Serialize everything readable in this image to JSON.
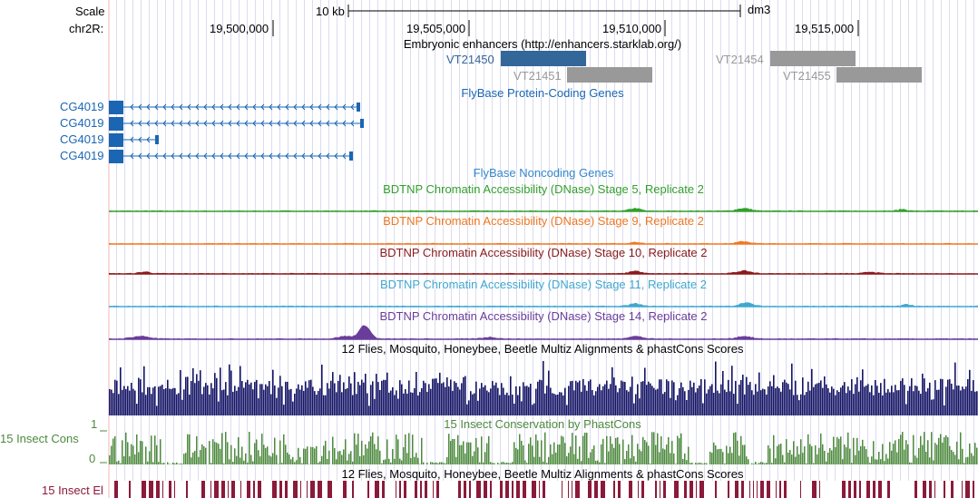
{
  "ruler": {
    "scale_label": "Scale",
    "scale_bar_text": "10 kb",
    "assembly": "dm3",
    "chrom_label": "chr2R:",
    "ticks": [
      "19,500,000",
      "19,505,000",
      "19,510,000",
      "19,515,000"
    ]
  },
  "enhancers": {
    "title": "Embryonic enhancers (http://enhancers.starklab.org/)",
    "items": [
      {
        "name": "VT21450",
        "color": "#336699"
      },
      {
        "name": "VT21451",
        "color": "#999999"
      },
      {
        "name": "VT21454",
        "color": "#999999"
      },
      {
        "name": "VT21455",
        "color": "#999999"
      }
    ]
  },
  "protein_genes": {
    "title": "FlyBase Protein-Coding Genes",
    "color": "#1a66b3",
    "items": [
      "CG4019",
      "CG4019",
      "CG4019",
      "CG4019"
    ]
  },
  "noncoding_genes": {
    "title": "FlyBase Noncoding Genes",
    "color": "#3388cc"
  },
  "dnase_tracks": [
    {
      "title": "BDTNP Chromatin Accessibility (DNase) Stage 5, Replicate 2",
      "color": "#33a02c"
    },
    {
      "title": "BDTNP Chromatin Accessibility (DNase) Stage 9, Replicate 2",
      "color": "#f07820"
    },
    {
      "title": "BDTNP Chromatin Accessibility (DNase) Stage 10, Replicate 2",
      "color": "#8b1a1a"
    },
    {
      "title": "BDTNP Chromatin Accessibility (DNase) Stage 11, Replicate 2",
      "color": "#40a8d0"
    },
    {
      "title": "BDTNP Chromatin Accessibility (DNase) Stage 14, Replicate 2",
      "color": "#6a3d9a"
    }
  ],
  "multiz": {
    "title": "12 Flies, Mosquito, Honeybee, Beetle Multiz Alignments & phastCons Scores",
    "color": "#141466"
  },
  "insect_cons": {
    "title": "15 Insect Conservation by PhastCons",
    "left_label": "15 Insect Cons",
    "axis_max": "1",
    "axis_min": "0",
    "color": "#4d8a3d"
  },
  "insect_el": {
    "title": "12 Flies, Mosquito, Honeybee, Beetle Multiz Alignments & phastCons Scores",
    "left_label": "15 Insect El",
    "color": "#8b1a3a"
  }
}
